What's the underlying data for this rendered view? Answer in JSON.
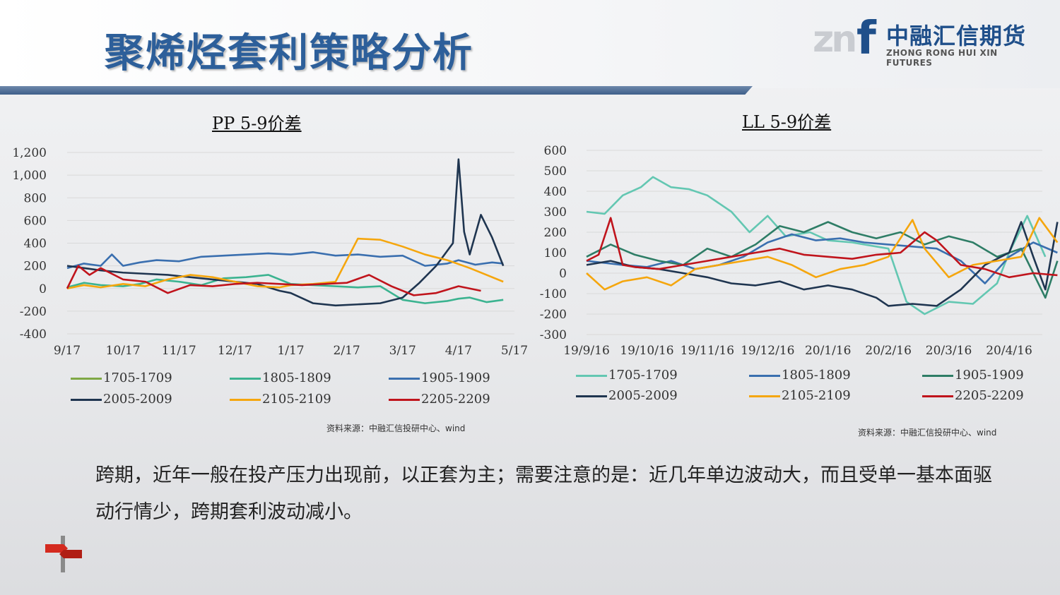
{
  "title": "聚烯烃套利策略分析",
  "logo": {
    "cn": "中融汇信期货",
    "en": "ZHONG RONG HUI XIN FUTURES"
  },
  "charts": [
    {
      "title": "PP 5-9价差",
      "source": "资料来源：中融汇信投研中心、wind"
    },
    {
      "title": "LL 5-9价差",
      "source": "资料来源：中融汇信投研中心、wind"
    }
  ],
  "note": "跨期，近年一般在投产压力出现前，以正套为主；需要注意的是：近几年单边波动大，而且受单一基本面驱动行情少，跨期套利波动减小。",
  "chart_data": [
    {
      "type": "line",
      "title": "PP 5-9价差",
      "x_ticks": [
        "9/17",
        "10/17",
        "11/17",
        "12/17",
        "1/17",
        "2/17",
        "3/17",
        "4/17",
        "5/17"
      ],
      "ylim": [
        -400,
        1200
      ],
      "y_ticks": [
        "-400",
        "-200",
        "0",
        "200",
        "400",
        "600",
        "800",
        "1,000",
        "1,200"
      ],
      "grid": true,
      "legend": "bottom",
      "series": [
        {
          "name": "1705-1709",
          "color": "#7fa845",
          "x": [],
          "y": []
        },
        {
          "name": "1805-1809",
          "color": "#3bb390",
          "x": [
            0,
            0.3,
            0.6,
            1,
            1.3,
            1.6,
            2,
            2.4,
            2.8,
            3.2,
            3.6,
            4,
            4.4,
            4.8,
            5.2,
            5.6,
            6,
            6.4,
            6.8,
            7,
            7.2,
            7.5,
            7.8
          ],
          "y": [
            10,
            50,
            30,
            20,
            40,
            80,
            60,
            30,
            90,
            100,
            120,
            40,
            30,
            20,
            10,
            20,
            -100,
            -130,
            -110,
            -90,
            -80,
            -120,
            -100
          ]
        },
        {
          "name": "1905-1909",
          "color": "#3a6faf",
          "x": [
            0,
            0.3,
            0.6,
            0.8,
            1,
            1.3,
            1.6,
            2,
            2.4,
            2.8,
            3.2,
            3.6,
            4,
            4.4,
            4.8,
            5.2,
            5.6,
            6,
            6.4,
            6.8,
            7,
            7.3,
            7.6,
            7.8
          ],
          "y": [
            180,
            220,
            200,
            300,
            200,
            230,
            250,
            240,
            280,
            290,
            300,
            310,
            300,
            320,
            290,
            300,
            280,
            290,
            200,
            220,
            250,
            210,
            230,
            220
          ]
        },
        {
          "name": "2005-2009",
          "color": "#1f3550",
          "x": [
            0,
            0.3,
            0.6,
            1,
            1.4,
            1.8,
            2.2,
            2.6,
            3,
            3.4,
            3.8,
            4,
            4.4,
            4.8,
            5.2,
            5.6,
            6,
            6.3,
            6.6,
            6.9,
            7.0,
            7.1,
            7.2,
            7.4,
            7.6,
            7.8
          ],
          "y": [
            200,
            180,
            160,
            140,
            130,
            120,
            100,
            80,
            60,
            40,
            -20,
            -40,
            -130,
            -150,
            -140,
            -130,
            -80,
            50,
            200,
            400,
            1140,
            500,
            300,
            650,
            450,
            200
          ]
        },
        {
          "name": "2105-2109",
          "color": "#f5a60d",
          "x": [
            0,
            0.3,
            0.6,
            1,
            1.4,
            1.8,
            2.2,
            2.6,
            3,
            3.4,
            3.8,
            4,
            4.4,
            4.8,
            5.2,
            5.6,
            6,
            6.4,
            6.8,
            7.2,
            7.5,
            7.8
          ],
          "y": [
            0,
            30,
            10,
            40,
            20,
            80,
            120,
            100,
            60,
            20,
            10,
            30,
            40,
            60,
            440,
            430,
            370,
            300,
            250,
            180,
            120,
            60
          ]
        },
        {
          "name": "2205-2209",
          "color": "#c0141c",
          "x": [
            0,
            0.2,
            0.4,
            0.6,
            1,
            1.4,
            1.8,
            2.2,
            2.6,
            3,
            3.4,
            3.8,
            4.2,
            4.6,
            5,
            5.4,
            5.8,
            6.2,
            6.6,
            7,
            7.4
          ],
          "y": [
            0,
            200,
            120,
            180,
            80,
            60,
            -40,
            30,
            20,
            40,
            50,
            40,
            30,
            40,
            50,
            120,
            20,
            -60,
            -40,
            20,
            -20
          ]
        }
      ]
    },
    {
      "type": "line",
      "title": "LL 5-9价差",
      "x_ticks": [
        "19/9/16",
        "19/10/16",
        "19/11/16",
        "19/12/16",
        "20/1/16",
        "20/2/16",
        "20/3/16",
        "20/4/16"
      ],
      "ylim": [
        -300,
        600
      ],
      "y_ticks": [
        "-300",
        "-200",
        "-100",
        "0",
        "100",
        "200",
        "300",
        "400",
        "500",
        "600"
      ],
      "grid": true,
      "legend": "bottom",
      "series": [
        {
          "name": "1705-1709",
          "color": "#63c7b2",
          "x": [
            0,
            0.3,
            0.6,
            0.9,
            1.1,
            1.4,
            1.7,
            2,
            2.4,
            2.7,
            3,
            3.3,
            3.7,
            4,
            4.4,
            4.8,
            5,
            5.3,
            5.6,
            6,
            6.4,
            6.8,
            7,
            7.3,
            7.6
          ],
          "y": [
            300,
            290,
            380,
            420,
            470,
            420,
            410,
            380,
            300,
            200,
            280,
            180,
            200,
            160,
            150,
            130,
            120,
            -140,
            -200,
            -140,
            -150,
            -50,
            100,
            280,
            80
          ]
        },
        {
          "name": "1805-1809",
          "color": "#3a6faf",
          "x": [
            0,
            0.3,
            0.6,
            1,
            1.4,
            1.8,
            2.2,
            2.6,
            3,
            3.4,
            3.8,
            4.2,
            4.6,
            5,
            5.4,
            5.8,
            6.2,
            6.6,
            7,
            7.4,
            7.8
          ],
          "y": [
            60,
            50,
            40,
            30,
            60,
            20,
            40,
            80,
            150,
            190,
            160,
            170,
            150,
            140,
            130,
            120,
            60,
            -50,
            80,
            150,
            100
          ]
        },
        {
          "name": "1905-1909",
          "color": "#2e7d66",
          "x": [
            0,
            0.4,
            0.8,
            1.2,
            1.6,
            2,
            2.4,
            2.8,
            3.2,
            3.6,
            4,
            4.4,
            4.8,
            5.2,
            5.6,
            6,
            6.4,
            6.8,
            7.2,
            7.6,
            7.8
          ],
          "y": [
            80,
            140,
            90,
            60,
            40,
            120,
            80,
            140,
            230,
            200,
            250,
            200,
            170,
            200,
            140,
            180,
            150,
            80,
            120,
            -120,
            60
          ]
        },
        {
          "name": "2005-2009",
          "color": "#1f3550",
          "x": [
            0,
            0.4,
            0.8,
            1.2,
            1.6,
            2,
            2.4,
            2.8,
            3.2,
            3.6,
            4,
            4.4,
            4.8,
            5,
            5.4,
            5.8,
            6.2,
            6.6,
            7,
            7.2,
            7.4,
            7.6,
            7.8
          ],
          "y": [
            40,
            60,
            30,
            20,
            0,
            -20,
            -50,
            -60,
            -40,
            -80,
            -60,
            -80,
            -120,
            -160,
            -150,
            -160,
            -80,
            40,
            100,
            250,
            80,
            -80,
            250
          ]
        },
        {
          "name": "2105-2109",
          "color": "#f5a60d",
          "x": [
            0,
            0.3,
            0.6,
            1,
            1.4,
            1.8,
            2.2,
            2.6,
            3,
            3.4,
            3.8,
            4.2,
            4.6,
            5,
            5.4,
            5.6,
            6,
            6.4,
            6.8,
            7.2,
            7.5,
            7.8
          ],
          "y": [
            0,
            -80,
            -40,
            -20,
            -60,
            20,
            40,
            60,
            80,
            40,
            -20,
            20,
            40,
            80,
            260,
            120,
            -20,
            40,
            60,
            80,
            270,
            150
          ]
        },
        {
          "name": "2205-2209",
          "color": "#c0141c",
          "x": [
            0,
            0.2,
            0.4,
            0.6,
            0.8,
            1.2,
            1.6,
            2,
            2.4,
            2.8,
            3.2,
            3.6,
            4,
            4.4,
            4.8,
            5.2,
            5.6,
            5.8,
            6.2,
            6.6,
            7,
            7.4,
            7.8
          ],
          "y": [
            60,
            90,
            270,
            40,
            30,
            20,
            40,
            60,
            80,
            100,
            120,
            90,
            80,
            70,
            90,
            100,
            200,
            160,
            40,
            20,
            -20,
            0,
            -10
          ]
        }
      ]
    }
  ]
}
